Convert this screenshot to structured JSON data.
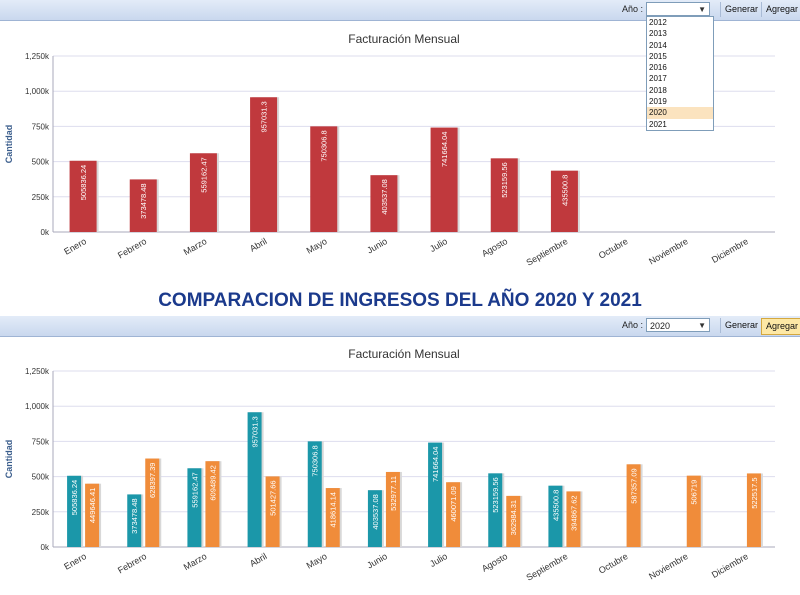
{
  "toolbar1": {
    "year_label": "Año :",
    "year_value": "",
    "generate_label": "Generar",
    "add_label": "Agregar",
    "dropdown_options": [
      "2012",
      "2013",
      "2014",
      "2015",
      "2016",
      "2017",
      "2018",
      "2019",
      "2020",
      "2021"
    ],
    "highlighted_option": "2020"
  },
  "toolbar2": {
    "year_label": "Año :",
    "year_value": "2020",
    "generate_label": "Generar",
    "add_label": "Agregar"
  },
  "heading": "COMPARACION DE INGRESOS DEL AÑO 2020 Y 2021",
  "colors": {
    "red": "#c0393d",
    "teal": "#1b97a9",
    "orange": "#f08c3a"
  },
  "chart_data": [
    {
      "type": "bar",
      "title": "Facturación Mensual",
      "ylabel": "Cantidad",
      "xlabel": "",
      "ylim": [
        0,
        1250000
      ],
      "yticks": [
        "0k",
        "250k",
        "500k",
        "750k",
        "1,000k",
        "1,250k"
      ],
      "categories": [
        "Enero",
        "Febrero",
        "Marzo",
        "Abril",
        "Mayo",
        "Junio",
        "Julio",
        "Agosto",
        "Septiembre",
        "Octubre",
        "Noviembre",
        "Diciembre"
      ],
      "series": [
        {
          "name": "2020",
          "values": [
            505836.24,
            373478.48,
            559162.47,
            957031.3,
            750306.8,
            403537.08,
            741664.04,
            523159.56,
            435500.8,
            null,
            null,
            null
          ],
          "labels": [
            "505836.24",
            "373478.48",
            "559162.47",
            "957031.3",
            "750306.8",
            "403537.08",
            "741664.04",
            "523159.56",
            "435500.8",
            "",
            "",
            ""
          ]
        }
      ]
    },
    {
      "type": "bar",
      "title": "Facturación Mensual",
      "ylabel": "Cantidad",
      "xlabel": "",
      "ylim": [
        0,
        1250000
      ],
      "yticks": [
        "0k",
        "250k",
        "500k",
        "750k",
        "1,000k",
        "1,250k"
      ],
      "categories": [
        "Enero",
        "Febrero",
        "Marzo",
        "Abril",
        "Mayo",
        "Junio",
        "Julio",
        "Agosto",
        "Septiembre",
        "Octubre",
        "Noviembre",
        "Diciembre"
      ],
      "series": [
        {
          "name": "2020",
          "values": [
            505836.24,
            373478.48,
            559162.47,
            957031.3,
            750306.8,
            403537.08,
            741664.04,
            523159.56,
            435500.8,
            null,
            null,
            null
          ],
          "labels": [
            "505836.24",
            "373478.48",
            "559162.47",
            "957031.3",
            "750306.8",
            "403537.08",
            "741664.04",
            "523159.56",
            "435500.8",
            "",
            "",
            ""
          ]
        },
        {
          "name": "2021",
          "values": [
            449646.41,
            628397.39,
            609489.42,
            501427.66,
            418614.14,
            532977.11,
            460071.09,
            362984.31,
            394867.62,
            587357.09,
            506719,
            522517.5
          ],
          "labels": [
            "449646.41",
            "628397.39",
            "609489.42",
            "501427.66",
            "418614.14",
            "532977.11",
            "460071.09",
            "362984.31",
            "394867.62",
            "587357.09",
            "506719",
            "522517.5"
          ]
        }
      ]
    }
  ]
}
